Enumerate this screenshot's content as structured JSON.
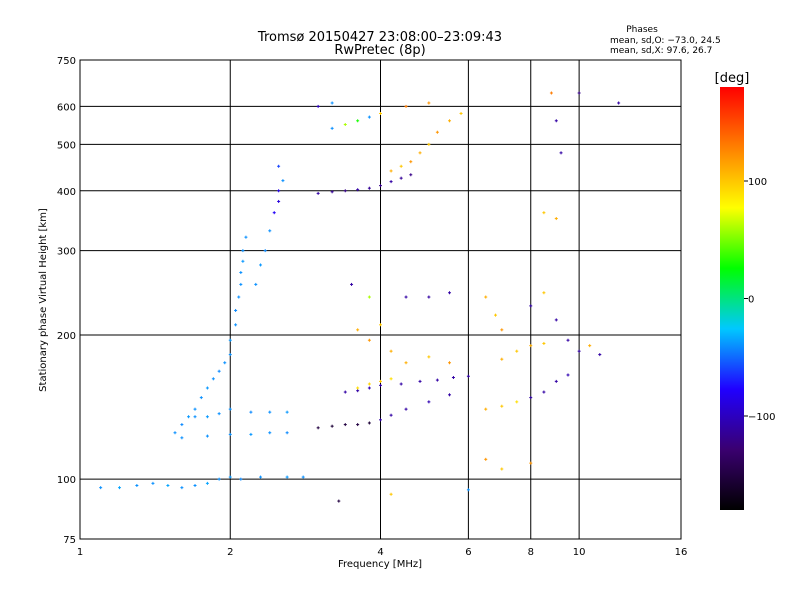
{
  "title": {
    "line1": "Tromsø 20150427 23:08:00–23:09:43",
    "line2": "RwPretec (8p)"
  },
  "phase_info": {
    "header": "Phases",
    "line_o": "mean, sd,O: −73.0, 24.5",
    "line_x": "mean, sd,X:  97.6, 26.7"
  },
  "colorbar": {
    "unit_label": "[deg]",
    "range": [
      -180,
      180
    ],
    "ticks": [
      {
        "value": 100,
        "label": "100"
      },
      {
        "value": 0,
        "label": "0"
      },
      {
        "value": -100,
        "label": "−100"
      }
    ],
    "colormap": [
      "#000000",
      "#3a0070",
      "#2000ff",
      "#00c8ff",
      "#00ff00",
      "#ffff00",
      "#ff8000",
      "#ff0000"
    ]
  },
  "chart_data": {
    "type": "scatter",
    "title": "Tromsø 20150427 23:08:00–23:09:43",
    "subtitle": "RwPretec (8p)",
    "xlabel": "Frequency [MHz]",
    "ylabel": "Stationary phase Virtual Height [km]",
    "x_scale": "log",
    "y_scale": "log",
    "xlim": [
      1,
      16
    ],
    "ylim": [
      75,
      750
    ],
    "grid": true,
    "x_ticks": [
      {
        "value": 1,
        "label": "1"
      },
      {
        "value": 2,
        "label": "2"
      },
      {
        "value": 4,
        "label": "4"
      },
      {
        "value": 6,
        "label": "6"
      },
      {
        "value": 8,
        "label": "8"
      },
      {
        "value": 10,
        "label": "10"
      },
      {
        "value": 16,
        "label": "16"
      }
    ],
    "x_gridlines": [
      2,
      4,
      6,
      8,
      10
    ],
    "y_ticks": [
      {
        "value": 75,
        "label": "75"
      },
      {
        "value": 100,
        "label": "100"
      },
      {
        "value": 200,
        "label": "200"
      },
      {
        "value": 300,
        "label": "300"
      },
      {
        "value": 400,
        "label": "400"
      },
      {
        "value": 500,
        "label": "500"
      },
      {
        "value": 600,
        "label": "600"
      },
      {
        "value": 750,
        "label": "750"
      }
    ],
    "y_gridlines": [
      100,
      200,
      300,
      400,
      500,
      600
    ],
    "color_variable": "phase (deg)",
    "series": [
      {
        "points": [
          [
            1.1,
            96,
            -40
          ],
          [
            1.2,
            96,
            -35
          ],
          [
            1.3,
            97,
            -40
          ],
          [
            1.4,
            98,
            -40
          ],
          [
            1.5,
            97,
            -35
          ],
          [
            1.6,
            96,
            -40
          ],
          [
            1.7,
            97,
            -40
          ],
          [
            1.8,
            98,
            -35
          ],
          [
            1.9,
            100,
            -40
          ],
          [
            2.0,
            101,
            -38
          ],
          [
            2.1,
            100,
            -42
          ],
          [
            2.3,
            101,
            -40
          ],
          [
            2.6,
            101,
            -38
          ],
          [
            2.8,
            101,
            -40
          ],
          [
            1.55,
            125,
            -40
          ],
          [
            1.6,
            130,
            -42
          ],
          [
            1.65,
            135,
            -38
          ],
          [
            1.7,
            140,
            -40
          ],
          [
            1.75,
            148,
            -40
          ],
          [
            1.8,
            155,
            -38
          ],
          [
            1.85,
            162,
            -40
          ],
          [
            1.9,
            168,
            -42
          ],
          [
            1.95,
            175,
            -40
          ],
          [
            2.0,
            182,
            -40
          ],
          [
            2.0,
            195,
            -38
          ],
          [
            2.05,
            210,
            -40
          ],
          [
            2.05,
            225,
            -42
          ],
          [
            2.08,
            240,
            -40
          ],
          [
            2.1,
            255,
            -40
          ],
          [
            2.1,
            270,
            -40
          ],
          [
            2.12,
            285,
            -38
          ],
          [
            2.12,
            300,
            -40
          ],
          [
            2.15,
            320,
            -40
          ],
          [
            1.7,
            135,
            -40
          ],
          [
            1.8,
            135,
            -38
          ],
          [
            1.9,
            137,
            -40
          ],
          [
            2.0,
            140,
            -40
          ],
          [
            2.2,
            138,
            -42
          ],
          [
            2.4,
            138,
            -40
          ],
          [
            2.6,
            138,
            -38
          ],
          [
            1.6,
            122,
            -40
          ],
          [
            1.8,
            123,
            -40
          ],
          [
            2.0,
            124,
            -40
          ],
          [
            2.2,
            124,
            -38
          ],
          [
            2.4,
            125,
            -40
          ],
          [
            2.6,
            125,
            -42
          ],
          [
            2.25,
            255,
            -40
          ],
          [
            2.3,
            280,
            -38
          ],
          [
            2.35,
            300,
            -42
          ],
          [
            2.4,
            330,
            -40
          ],
          [
            2.45,
            360,
            -80
          ],
          [
            2.5,
            380,
            -90
          ],
          [
            2.5,
            400,
            -85
          ],
          [
            2.55,
            420,
            -40
          ],
          [
            2.5,
            450,
            -60
          ],
          [
            3.0,
            395,
            -110
          ],
          [
            3.2,
            398,
            -115
          ],
          [
            3.4,
            400,
            -120
          ],
          [
            3.6,
            402,
            -110
          ],
          [
            3.8,
            405,
            -115
          ],
          [
            4.0,
            410,
            -120
          ],
          [
            4.2,
            418,
            -110
          ],
          [
            4.4,
            425,
            -115
          ],
          [
            4.6,
            432,
            -120
          ],
          [
            4.2,
            440,
            110
          ],
          [
            4.4,
            450,
            100
          ],
          [
            4.6,
            460,
            120
          ],
          [
            4.8,
            480,
            110
          ],
          [
            5.0,
            500,
            100
          ],
          [
            5.2,
            530,
            120
          ],
          [
            5.5,
            560,
            110
          ],
          [
            5.8,
            580,
            100
          ],
          [
            3.2,
            540,
            -40
          ],
          [
            3.4,
            550,
            60
          ],
          [
            3.6,
            560,
            30
          ],
          [
            3.8,
            570,
            -40
          ],
          [
            4.0,
            580,
            100
          ],
          [
            3.0,
            600,
            -100
          ],
          [
            3.2,
            610,
            -40
          ],
          [
            4.5,
            600,
            130
          ],
          [
            5.0,
            610,
            120
          ],
          [
            3.0,
            128,
            -150
          ],
          [
            3.2,
            129,
            -155
          ],
          [
            3.4,
            130,
            -150
          ],
          [
            3.6,
            130,
            -150
          ],
          [
            3.8,
            131,
            -155
          ],
          [
            4.0,
            133,
            -110
          ],
          [
            4.2,
            136,
            -110
          ],
          [
            4.5,
            140,
            -110
          ],
          [
            5.0,
            145,
            -105
          ],
          [
            5.5,
            150,
            -110
          ],
          [
            3.4,
            152,
            -110
          ],
          [
            3.6,
            153,
            -110
          ],
          [
            3.8,
            155,
            -105
          ],
          [
            4.0,
            157,
            -110
          ],
          [
            4.4,
            158,
            -110
          ],
          [
            4.8,
            160,
            -110
          ],
          [
            5.2,
            161,
            -110
          ],
          [
            5.6,
            163,
            -110
          ],
          [
            6.0,
            164,
            -110
          ],
          [
            3.6,
            155,
            90
          ],
          [
            3.8,
            158,
            95
          ],
          [
            4.0,
            160,
            100
          ],
          [
            4.2,
            162,
            90
          ],
          [
            6.5,
            140,
            110
          ],
          [
            7.0,
            142,
            100
          ],
          [
            7.5,
            145,
            90
          ],
          [
            8.0,
            148,
            -110
          ],
          [
            8.5,
            152,
            -110
          ],
          [
            9.0,
            160,
            -110
          ],
          [
            9.5,
            165,
            -105
          ],
          [
            7.0,
            178,
            110
          ],
          [
            7.5,
            185,
            100
          ],
          [
            8.0,
            190,
            110
          ],
          [
            8.5,
            192,
            100
          ],
          [
            3.5,
            255,
            -110
          ],
          [
            3.8,
            240,
            60
          ],
          [
            4.5,
            240,
            -110
          ],
          [
            5.0,
            240,
            -110
          ],
          [
            5.5,
            245,
            -110
          ],
          [
            3.6,
            205,
            110
          ],
          [
            3.8,
            195,
            120
          ],
          [
            4.0,
            210,
            100
          ],
          [
            4.2,
            185,
            110
          ],
          [
            4.5,
            175,
            110
          ],
          [
            5.0,
            180,
            100
          ],
          [
            5.5,
            175,
            120
          ],
          [
            6.5,
            240,
            110
          ],
          [
            6.8,
            220,
            100
          ],
          [
            7.0,
            205,
            120
          ],
          [
            8.0,
            230,
            -110
          ],
          [
            8.5,
            245,
            100
          ],
          [
            9.0,
            215,
            -110
          ],
          [
            9.5,
            195,
            -110
          ],
          [
            10.0,
            185,
            -110
          ],
          [
            10.5,
            190,
            110
          ],
          [
            11.0,
            182,
            -110
          ],
          [
            12.0,
            610,
            -110
          ],
          [
            10.0,
            640,
            -120
          ],
          [
            8.8,
            640,
            130
          ],
          [
            9.0,
            560,
            -110
          ],
          [
            9.2,
            480,
            -110
          ],
          [
            9.0,
            350,
            110
          ],
          [
            8.5,
            360,
            100
          ],
          [
            6.5,
            110,
            120
          ],
          [
            7.0,
            105,
            100
          ],
          [
            8.0,
            108,
            120
          ],
          [
            3.3,
            90,
            -150
          ],
          [
            4.2,
            93,
            100
          ],
          [
            6.0,
            95,
            -40
          ]
        ]
      }
    ]
  }
}
